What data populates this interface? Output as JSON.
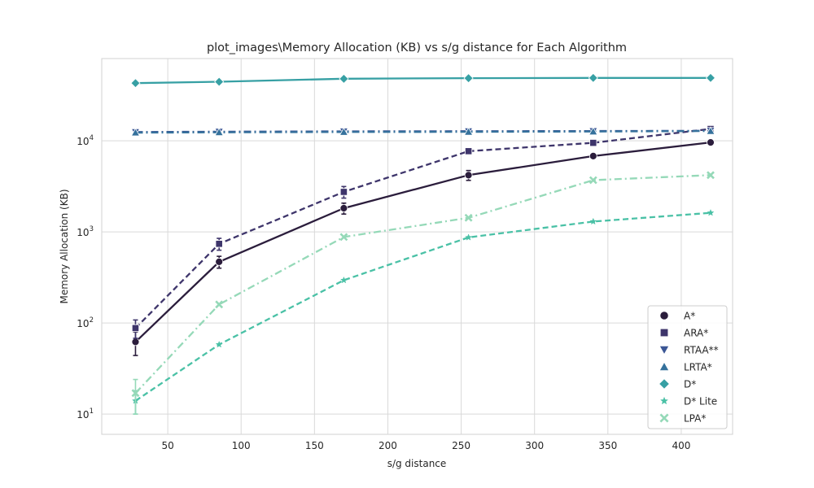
{
  "chart_data": {
    "type": "line",
    "title": "plot_images\\Memory Allocation (KB) vs s/g distance for Each Algorithm",
    "xlabel": "s/g distance",
    "ylabel": "Memory Allocation (KB)",
    "xlim": [
      5,
      435
    ],
    "ylim": [
      6,
      80000
    ],
    "yscale": "log",
    "x_ticks": [
      50,
      100,
      150,
      200,
      250,
      300,
      350,
      400
    ],
    "y_ticks": [
      {
        "value": 10,
        "base": "10",
        "exp": "1"
      },
      {
        "value": 100,
        "base": "10",
        "exp": "2"
      },
      {
        "value": 1000,
        "base": "10",
        "exp": "3"
      },
      {
        "value": 10000,
        "base": "10",
        "exp": "4"
      }
    ],
    "grid": true,
    "legend_position": "lower-right",
    "x": [
      28,
      85,
      170,
      255,
      340,
      420
    ],
    "series": [
      {
        "name": "A*",
        "color": "#2b1d3c",
        "marker": "circle",
        "dash": "solid",
        "values": [
          62,
          470,
          1820,
          4200,
          6800,
          9600
        ],
        "err": [
          18,
          70,
          250,
          520,
          0,
          0
        ]
      },
      {
        "name": "ARA*",
        "color": "#3e356b",
        "marker": "square",
        "dash": "dashed",
        "values": [
          88,
          740,
          2750,
          7700,
          9500,
          13500
        ],
        "err": [
          20,
          110,
          400,
          0,
          0,
          0
        ]
      },
      {
        "name": "RTAA**",
        "color": "#3b5695",
        "marker": "triangle-down",
        "dash": "dashdot",
        "values": [
          12500,
          12600,
          12700,
          12750,
          12800,
          12900
        ],
        "err": [
          0,
          0,
          0,
          0,
          0,
          0
        ]
      },
      {
        "name": "LRTA*",
        "color": "#35719c",
        "marker": "triangle-up",
        "dash": "dashdot",
        "values": [
          12300,
          12400,
          12500,
          12550,
          12650,
          12800
        ],
        "err": [
          0,
          0,
          0,
          0,
          0,
          0
        ]
      },
      {
        "name": "D*",
        "color": "#37a0a4",
        "marker": "diamond",
        "dash": "solid",
        "values": [
          43000,
          44500,
          48000,
          48700,
          49000,
          49000
        ],
        "err": [
          0,
          0,
          0,
          0,
          0,
          0
        ]
      },
      {
        "name": "D* Lite",
        "color": "#4ac1a6",
        "marker": "star",
        "dash": "dashed",
        "values": [
          14,
          58,
          295,
          870,
          1300,
          1620
        ],
        "err": [
          4,
          0,
          0,
          0,
          0,
          0
        ]
      },
      {
        "name": "LPA*",
        "color": "#95d9b8",
        "marker": "x",
        "dash": "dashdot",
        "values": [
          17,
          160,
          880,
          1430,
          3700,
          4200
        ],
        "err": [
          7,
          0,
          0,
          0,
          0,
          0
        ]
      }
    ]
  }
}
